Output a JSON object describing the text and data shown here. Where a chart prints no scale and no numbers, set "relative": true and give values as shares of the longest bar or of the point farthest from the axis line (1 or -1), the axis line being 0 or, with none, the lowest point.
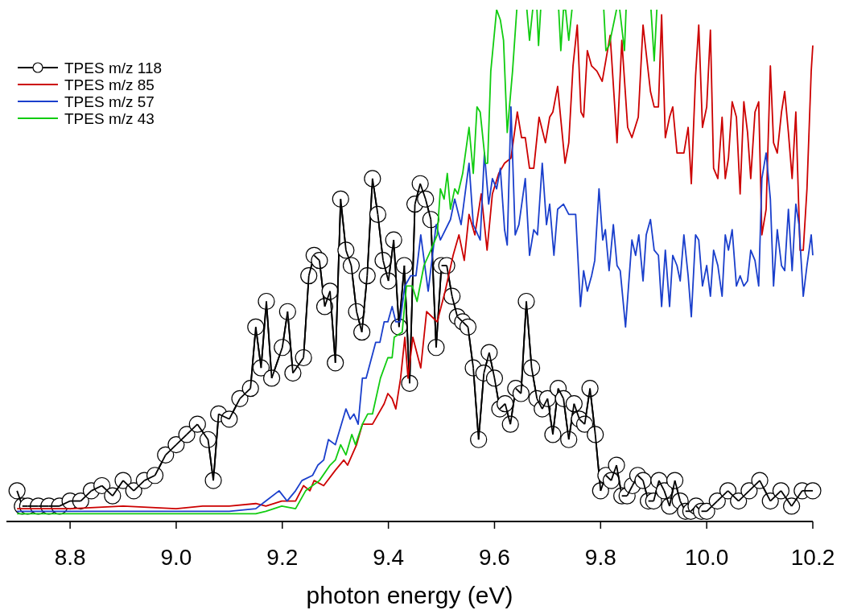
{
  "chart_data": {
    "type": "line",
    "relative": true,
    "xlabel": "photon energy (eV)",
    "xlim": [
      8.68,
      10.2
    ],
    "xticks": [
      {
        "value": 8.8,
        "label": "8.8"
      },
      {
        "value": 9,
        "label": "9.0"
      },
      {
        "value": 9.2,
        "label": "9.2"
      },
      {
        "value": 9.4,
        "label": "9.4"
      },
      {
        "value": 9.6,
        "label": "9.6"
      },
      {
        "value": 9.8,
        "label": "9.8"
      },
      {
        "value": 10,
        "label": "10.0"
      },
      {
        "value": 10.2,
        "label": "10.2"
      }
    ],
    "legend": "top left",
    "grid": false,
    "line_style": "solid",
    "series": [
      {
        "name": "TPES m/z 118",
        "color": "#000000",
        "marker": "circle",
        "x": [
          8.7,
          8.71,
          8.72,
          8.74,
          8.76,
          8.78,
          8.8,
          8.82,
          8.84,
          8.86,
          8.88,
          8.9,
          8.92,
          8.94,
          8.96,
          8.98,
          9.0,
          9.02,
          9.04,
          9.06,
          9.07,
          9.08,
          9.1,
          9.12,
          9.14,
          9.15,
          9.16,
          9.17,
          9.18,
          9.2,
          9.21,
          9.22,
          9.24,
          9.25,
          9.26,
          9.27,
          9.28,
          9.29,
          9.3,
          9.31,
          9.32,
          9.33,
          9.34,
          9.35,
          9.36,
          9.37,
          9.38,
          9.39,
          9.4,
          9.41,
          9.42,
          9.43,
          9.44,
          9.45,
          9.46,
          9.47,
          9.48,
          9.49,
          9.5,
          9.51,
          9.52,
          9.53,
          9.54,
          9.55,
          9.56,
          9.57,
          9.58,
          9.59,
          9.6,
          9.61,
          9.62,
          9.63,
          9.64,
          9.65,
          9.66,
          9.67,
          9.68,
          9.69,
          9.7,
          9.71,
          9.72,
          9.73,
          9.74,
          9.75,
          9.76,
          9.77,
          9.78,
          9.79,
          9.8,
          9.81,
          9.82,
          9.83,
          9.84,
          9.85,
          9.86,
          9.87,
          9.88,
          9.89,
          9.9,
          9.91,
          9.92,
          9.93,
          9.94,
          9.95,
          9.96,
          9.97,
          9.98,
          9.99,
          10.0,
          10.02,
          10.04,
          10.06,
          10.08,
          10.1,
          10.12,
          10.14,
          10.16,
          10.18,
          10.2
        ],
        "values": [
          0.06,
          0.03,
          0.03,
          0.03,
          0.03,
          0.03,
          0.04,
          0.04,
          0.06,
          0.07,
          0.05,
          0.08,
          0.06,
          0.08,
          0.09,
          0.13,
          0.15,
          0.17,
          0.19,
          0.16,
          0.08,
          0.21,
          0.2,
          0.24,
          0.26,
          0.38,
          0.3,
          0.43,
          0.28,
          0.34,
          0.41,
          0.29,
          0.32,
          0.48,
          0.52,
          0.51,
          0.42,
          0.45,
          0.31,
          0.63,
          0.53,
          0.5,
          0.41,
          0.37,
          0.48,
          0.67,
          0.6,
          0.51,
          0.47,
          0.55,
          0.38,
          0.5,
          0.27,
          0.62,
          0.66,
          0.63,
          0.59,
          0.34,
          0.5,
          0.5,
          0.44,
          0.4,
          0.39,
          0.38,
          0.3,
          0.16,
          0.29,
          0.33,
          0.28,
          0.22,
          0.23,
          0.19,
          0.26,
          0.25,
          0.43,
          0.3,
          0.24,
          0.22,
          0.24,
          0.17,
          0.26,
          0.24,
          0.16,
          0.23,
          0.2,
          0.19,
          0.26,
          0.17,
          0.06,
          0.09,
          0.08,
          0.11,
          0.05,
          0.05,
          0.07,
          0.09,
          0.08,
          0.04,
          0.04,
          0.08,
          0.06,
          0.03,
          0.08,
          0.04,
          0.02,
          0.02,
          0.03,
          0.02,
          0.02,
          0.04,
          0.06,
          0.04,
          0.06,
          0.08,
          0.04,
          0.06,
          0.03,
          0.06,
          0.06
        ]
      },
      {
        "name": "TPES m/z 85",
        "color": "#cc0000",
        "marker": "none",
        "x": [
          8.7,
          8.8,
          8.9,
          9.0,
          9.05,
          9.1,
          9.15,
          9.169,
          9.199,
          9.225,
          9.24,
          9.252,
          9.26,
          9.278,
          9.3,
          9.316,
          9.323,
          9.34,
          9.351,
          9.37,
          9.392,
          9.399,
          9.407,
          9.414,
          9.423,
          9.431,
          9.437,
          9.446,
          9.461,
          9.472,
          9.492,
          9.507,
          9.522,
          9.533,
          9.543,
          9.552,
          9.563,
          9.575,
          9.586,
          9.596,
          9.608,
          9.619,
          9.631,
          9.643,
          9.651,
          9.658,
          9.666,
          9.674,
          9.684,
          9.696,
          9.704,
          9.71,
          9.719,
          9.733,
          9.74,
          9.748,
          9.756,
          9.763,
          9.768,
          9.775,
          9.783,
          9.793,
          9.803,
          9.818,
          9.831,
          9.84,
          9.851,
          9.859,
          9.871,
          9.88,
          9.894,
          9.901,
          9.909,
          9.915,
          9.922,
          9.93,
          9.936,
          9.944,
          9.957,
          9.965,
          9.971,
          9.979,
          9.985,
          9.992,
          10.0,
          10.007,
          10.013,
          10.021,
          10.029,
          10.035,
          10.041,
          10.048,
          10.056,
          10.063,
          10.07,
          10.077,
          10.083,
          10.091,
          10.098,
          10.104,
          10.112,
          10.12,
          10.126,
          10.133,
          10.141,
          10.147,
          10.154,
          10.161,
          10.168,
          10.176,
          10.182,
          10.189,
          10.197,
          10.2
        ],
        "values": [
          0.025,
          0.025,
          0.03,
          0.025,
          0.03,
          0.03,
          0.035,
          0.03,
          0.04,
          0.04,
          0.07,
          0.06,
          0.08,
          0.07,
          0.1,
          0.12,
          0.11,
          0.15,
          0.19,
          0.19,
          0.23,
          0.25,
          0.24,
          0.22,
          0.28,
          0.36,
          0.28,
          0.36,
          0.3,
          0.41,
          0.39,
          0.45,
          0.52,
          0.56,
          0.51,
          0.6,
          0.56,
          0.64,
          0.53,
          0.64,
          0.68,
          0.7,
          0.71,
          0.8,
          0.75,
          0.75,
          0.69,
          0.69,
          0.79,
          0.74,
          0.79,
          0.8,
          0.85,
          0.7,
          0.74,
          0.89,
          0.97,
          0.8,
          0.79,
          0.92,
          0.89,
          0.88,
          0.86,
          0.95,
          0.74,
          0.94,
          0.77,
          0.75,
          0.79,
          0.97,
          0.84,
          0.81,
          0.81,
          0.99,
          0.75,
          0.79,
          0.81,
          0.72,
          0.72,
          0.77,
          0.66,
          0.87,
          0.97,
          0.77,
          0.81,
          0.96,
          0.69,
          0.67,
          0.79,
          0.67,
          0.71,
          0.82,
          0.79,
          0.64,
          0.82,
          0.76,
          0.67,
          0.8,
          0.82,
          0.56,
          0.61,
          0.89,
          0.74,
          0.72,
          0.8,
          0.84,
          0.76,
          0.67,
          0.8,
          0.53,
          0.53,
          0.65,
          0.88,
          0.93
        ]
      },
      {
        "name": "TPES m/z 57",
        "color": "#1a3fcc",
        "marker": "none",
        "x": [
          8.7,
          8.8,
          8.9,
          9.0,
          9.05,
          9.1,
          9.15,
          9.169,
          9.194,
          9.209,
          9.225,
          9.237,
          9.257,
          9.267,
          9.278,
          9.287,
          9.3,
          9.32,
          9.328,
          9.335,
          9.343,
          9.351,
          9.358,
          9.376,
          9.384,
          9.392,
          9.399,
          9.407,
          9.414,
          9.422,
          9.431,
          9.442,
          9.452,
          9.461,
          9.475,
          9.49,
          9.498,
          9.517,
          9.525,
          9.537,
          9.552,
          9.56,
          9.573,
          9.581,
          9.589,
          9.596,
          9.604,
          9.611,
          9.619,
          9.624,
          9.631,
          9.639,
          9.646,
          9.658,
          9.666,
          9.674,
          9.681,
          9.69,
          9.698,
          9.704,
          9.712,
          9.719,
          9.73,
          9.74,
          9.753,
          9.762,
          9.768,
          9.775,
          9.783,
          9.789,
          9.797,
          9.804,
          9.809,
          9.816,
          9.824,
          9.831,
          9.837,
          9.847,
          9.859,
          9.866,
          9.872,
          9.88,
          9.886,
          9.894,
          9.901,
          9.909,
          9.915,
          9.922,
          9.93,
          9.936,
          9.944,
          9.95,
          9.957,
          9.965,
          9.971,
          9.979,
          9.985,
          9.992,
          10.0,
          10.007,
          10.013,
          10.021,
          10.029,
          10.035,
          10.041,
          10.048,
          10.056,
          10.063,
          10.07,
          10.077,
          10.083,
          10.091,
          10.098,
          10.104,
          10.112,
          10.12,
          10.126,
          10.133,
          10.141,
          10.147,
          10.154,
          10.161,
          10.168,
          10.174,
          10.182,
          10.189,
          10.197,
          10.2
        ],
        "values": [
          0.02,
          0.02,
          0.02,
          0.02,
          0.02,
          0.02,
          0.025,
          0.04,
          0.06,
          0.04,
          0.06,
          0.08,
          0.09,
          0.11,
          0.12,
          0.16,
          0.15,
          0.22,
          0.2,
          0.21,
          0.19,
          0.28,
          0.28,
          0.35,
          0.35,
          0.39,
          0.39,
          0.42,
          0.39,
          0.39,
          0.46,
          0.48,
          0.48,
          0.56,
          0.45,
          0.58,
          0.55,
          0.59,
          0.63,
          0.58,
          0.7,
          0.58,
          0.55,
          0.72,
          0.62,
          0.67,
          0.65,
          0.69,
          0.57,
          0.54,
          0.81,
          0.56,
          0.58,
          0.67,
          0.52,
          0.57,
          0.56,
          0.7,
          0.58,
          0.62,
          0.52,
          0.61,
          0.62,
          0.6,
          0.6,
          0.42,
          0.49,
          0.45,
          0.48,
          0.51,
          0.65,
          0.55,
          0.57,
          0.49,
          0.58,
          0.5,
          0.49,
          0.38,
          0.55,
          0.52,
          0.56,
          0.47,
          0.56,
          0.59,
          0.53,
          0.52,
          0.42,
          0.53,
          0.42,
          0.52,
          0.5,
          0.47,
          0.56,
          0.48,
          0.4,
          0.56,
          0.55,
          0.46,
          0.5,
          0.44,
          0.53,
          0.5,
          0.44,
          0.56,
          0.53,
          0.57,
          0.46,
          0.48,
          0.46,
          0.47,
          0.53,
          0.51,
          0.46,
          0.67,
          0.72,
          0.63,
          0.46,
          0.57,
          0.5,
          0.49,
          0.61,
          0.49,
          0.62,
          0.58,
          0.44,
          0.5,
          0.56,
          0.52
        ]
      },
      {
        "name": "TPES m/z 43",
        "color": "#11cc11",
        "marker": "none",
        "x": [
          8.7,
          8.8,
          8.9,
          9.0,
          9.05,
          9.1,
          9.15,
          9.169,
          9.199,
          9.225,
          9.244,
          9.27,
          9.29,
          9.3,
          9.31,
          9.32,
          9.331,
          9.338,
          9.351,
          9.361,
          9.37,
          9.385,
          9.399,
          9.407,
          9.411,
          9.426,
          9.434,
          9.445,
          9.454,
          9.467,
          9.48,
          9.492,
          9.498,
          9.505,
          9.511,
          9.517,
          9.525,
          9.531,
          9.54,
          9.552,
          9.56,
          9.567,
          9.573,
          9.583,
          9.587,
          9.593,
          9.604,
          9.611,
          9.617,
          9.624,
          9.634,
          9.642,
          9.65,
          9.661,
          9.666,
          9.672,
          9.676,
          9.68,
          9.683,
          9.687,
          9.7,
          9.721,
          9.725,
          9.73,
          9.734,
          9.74,
          9.746,
          9.78,
          9.806,
          9.81,
          9.816,
          9.83,
          9.833,
          9.836,
          9.845,
          9.848,
          9.87,
          9.895,
          9.901,
          9.906
        ],
        "values": [
          0.015,
          0.015,
          0.015,
          0.015,
          0.015,
          0.015,
          0.015,
          0.02,
          0.03,
          0.025,
          0.06,
          0.08,
          0.11,
          0.12,
          0.15,
          0.13,
          0.17,
          0.15,
          0.19,
          0.21,
          0.21,
          0.28,
          0.32,
          0.32,
          0.36,
          0.37,
          0.46,
          0.46,
          0.43,
          0.5,
          0.53,
          0.56,
          0.65,
          0.63,
          0.68,
          0.61,
          0.65,
          0.64,
          0.68,
          0.77,
          0.68,
          0.81,
          0.8,
          0.7,
          0.7,
          0.88,
          1.0,
          0.98,
          0.94,
          0.76,
          0.88,
          1.0,
          null,
          1.0,
          0.94,
          1.0,
          null,
          1.0,
          0.93,
          1.0,
          null,
          1.0,
          0.92,
          1.0,
          1.0,
          0.94,
          1.0,
          null,
          1.0,
          0.92,
          0.93,
          1.0,
          null,
          1.0,
          0.92,
          1.0,
          null,
          1.0,
          0.9,
          1.0
        ]
      }
    ]
  }
}
